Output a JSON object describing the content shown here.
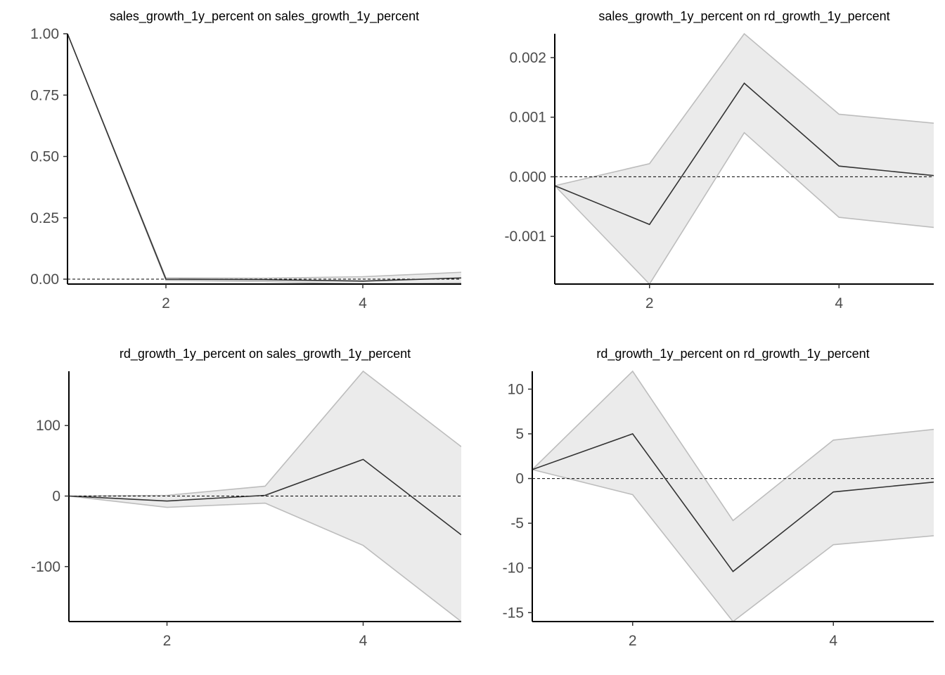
{
  "chart_data": [
    {
      "type": "line",
      "title": "sales_growth_1y_percent on sales_growth_1y_percent",
      "xlabel": "",
      "ylabel": "",
      "x": [
        1,
        2,
        3,
        4,
        5
      ],
      "xlim": [
        1,
        5
      ],
      "ylim": [
        -0.02,
        1.0
      ],
      "xticks": [
        2,
        4
      ],
      "xtick_labels": [
        "2",
        "4"
      ],
      "yticks": [
        0,
        0.25,
        0.5,
        0.75,
        1.0
      ],
      "ytick_labels": [
        "0.00",
        "0.25",
        "0.50",
        "0.75",
        "1.00"
      ],
      "series": [
        {
          "values": [
            1.0,
            0.0,
            -0.002,
            -0.008,
            0.005
          ]
        }
      ],
      "band": {
        "lower": [
          1.0,
          -0.005,
          -0.01,
          -0.02,
          -0.015
        ],
        "upper": [
          1.0,
          0.005,
          0.004,
          0.01,
          0.028
        ]
      },
      "zero_line": true,
      "grid": false
    },
    {
      "type": "line",
      "title": "sales_growth_1y_percent on rd_growth_1y_percent",
      "xlabel": "",
      "ylabel": "",
      "x": [
        1,
        2,
        3,
        4,
        5
      ],
      "xlim": [
        1,
        5
      ],
      "ylim": [
        -0.0018,
        0.0024
      ],
      "xticks": [
        2,
        4
      ],
      "xtick_labels": [
        "2",
        "4"
      ],
      "yticks": [
        -0.001,
        0.0,
        0.001,
        0.002
      ],
      "ytick_labels": [
        "-0.001",
        "0.000",
        "0.001",
        "0.002"
      ],
      "series": [
        {
          "values": [
            -0.00015,
            -0.0008,
            0.00157,
            0.00018,
            2e-05
          ]
        }
      ],
      "band": {
        "lower": [
          -0.00015,
          -0.0018,
          0.00074,
          -0.00068,
          -0.00085
        ],
        "upper": [
          -0.00015,
          0.00022,
          0.0024,
          0.00105,
          0.0009
        ]
      },
      "zero_line": true,
      "grid": false
    },
    {
      "type": "line",
      "title": "rd_growth_1y_percent on sales_growth_1y_percent",
      "xlabel": "",
      "ylabel": "",
      "x": [
        1,
        2,
        3,
        4,
        5
      ],
      "xlim": [
        1,
        5
      ],
      "ylim": [
        -178,
        177
      ],
      "xticks": [
        2,
        4
      ],
      "xtick_labels": [
        "2",
        "4"
      ],
      "yticks": [
        -100,
        0,
        100
      ],
      "ytick_labels": [
        "-100",
        "0",
        "100"
      ],
      "series": [
        {
          "values": [
            0,
            -7,
            1,
            52,
            -55
          ]
        }
      ],
      "band": {
        "lower": [
          0,
          -16,
          -10,
          -70,
          -178
        ],
        "upper": [
          0,
          1,
          14,
          177,
          70
        ]
      },
      "zero_line": true,
      "grid": false
    },
    {
      "type": "line",
      "title": "rd_growth_1y_percent on rd_growth_1y_percent",
      "xlabel": "",
      "ylabel": "",
      "x": [
        1,
        2,
        3,
        4,
        5
      ],
      "xlim": [
        1,
        5
      ],
      "ylim": [
        -16,
        12
      ],
      "xticks": [
        2,
        4
      ],
      "xtick_labels": [
        "2",
        "4"
      ],
      "yticks": [
        -15,
        -10,
        -5,
        0,
        5,
        10
      ],
      "ytick_labels": [
        "-15",
        "-10",
        "-5",
        "0",
        "5",
        "10"
      ],
      "series": [
        {
          "values": [
            1.0,
            5.0,
            -10.4,
            -1.5,
            -0.4
          ]
        }
      ],
      "band": {
        "lower": [
          1.0,
          -1.8,
          -16.0,
          -7.4,
          -6.4
        ],
        "upper": [
          1.0,
          12.0,
          -4.7,
          4.3,
          5.5
        ]
      },
      "zero_line": true,
      "grid": false
    }
  ]
}
